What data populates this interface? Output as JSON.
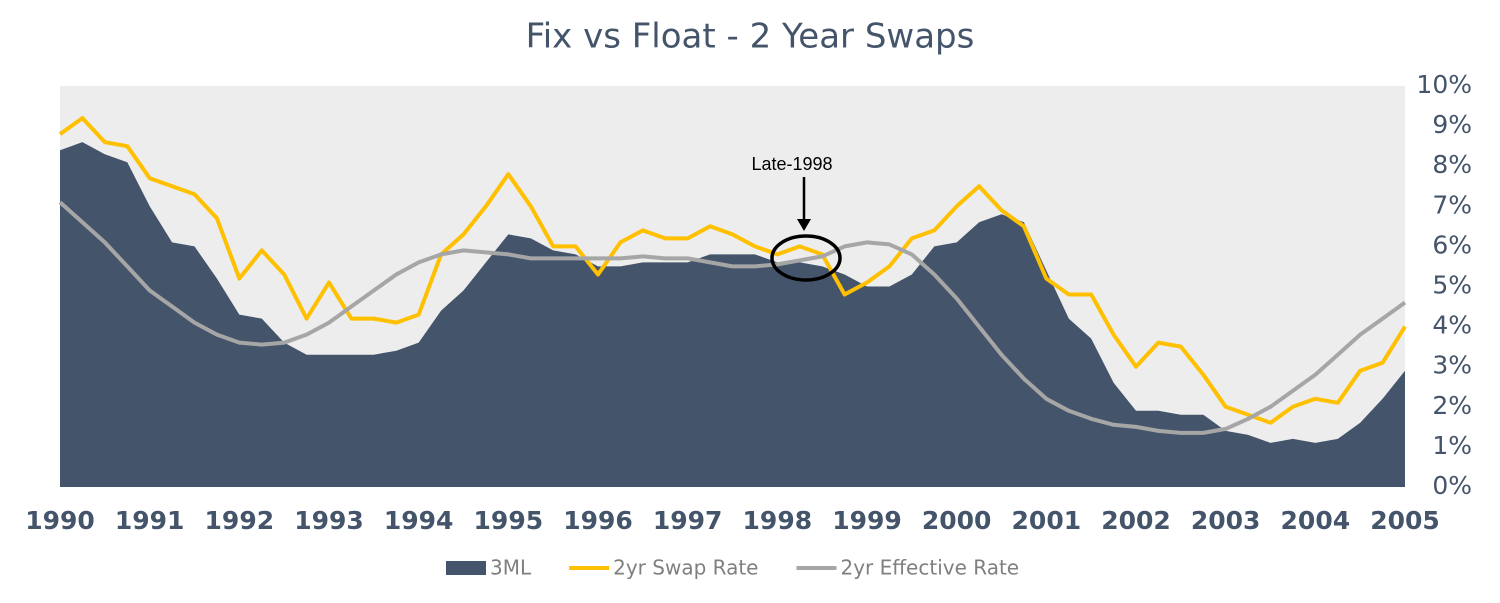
{
  "chart_data": {
    "type": "line",
    "title": "Fix vs Float - 2 Year Swaps",
    "annotations": [
      "Late-1998"
    ],
    "x": [
      1990,
      1990.25,
      1990.5,
      1990.75,
      1991,
      1991.25,
      1991.5,
      1991.75,
      1992,
      1992.25,
      1992.5,
      1992.75,
      1993,
      1993.25,
      1993.5,
      1993.75,
      1994,
      1994.25,
      1994.5,
      1994.75,
      1995,
      1995.25,
      1995.5,
      1995.75,
      1996,
      1996.25,
      1996.5,
      1996.75,
      1997,
      1997.25,
      1997.5,
      1997.75,
      1998,
      1998.25,
      1998.5,
      1998.75,
      1999,
      1999.25,
      1999.5,
      1999.75,
      2000,
      2000.25,
      2000.5,
      2000.75,
      2001,
      2001.25,
      2001.5,
      2001.75,
      2002,
      2002.25,
      2002.5,
      2002.75,
      2003,
      2003.25,
      2003.5,
      2003.75,
      2004,
      2004.25,
      2004.5,
      2004.75,
      2005
    ],
    "series": [
      {
        "name": "3ML",
        "color": "#44546a",
        "area": true,
        "values": [
          8.4,
          8.6,
          8.3,
          8.1,
          7.0,
          6.1,
          6.0,
          5.2,
          4.3,
          4.2,
          3.6,
          3.3,
          3.3,
          3.3,
          3.3,
          3.4,
          3.6,
          4.4,
          4.9,
          5.6,
          6.3,
          6.2,
          5.9,
          5.8,
          5.5,
          5.5,
          5.6,
          5.6,
          5.6,
          5.8,
          5.8,
          5.8,
          5.6,
          5.6,
          5.5,
          5.3,
          5.0,
          5.0,
          5.3,
          6.0,
          6.1,
          6.6,
          6.8,
          6.6,
          5.4,
          4.2,
          3.7,
          2.6,
          1.9,
          1.9,
          1.8,
          1.8,
          1.4,
          1.3,
          1.1,
          1.2,
          1.1,
          1.2,
          1.6,
          2.2,
          2.9
        ]
      },
      {
        "name": "2yr Swap Rate",
        "color": "#ffc000",
        "area": false,
        "values": [
          8.8,
          9.2,
          8.6,
          8.5,
          7.7,
          7.5,
          7.3,
          6.7,
          5.2,
          5.9,
          5.3,
          4.2,
          5.1,
          4.2,
          4.2,
          4.1,
          4.3,
          5.8,
          6.3,
          7.0,
          7.8,
          7.0,
          6.0,
          6.0,
          5.3,
          6.1,
          6.4,
          6.2,
          6.2,
          6.5,
          6.3,
          6.0,
          5.8,
          6.0,
          5.8,
          4.8,
          5.1,
          5.5,
          6.2,
          6.4,
          7.0,
          7.5,
          6.9,
          6.5,
          5.2,
          4.8,
          4.8,
          3.8,
          3.0,
          3.6,
          3.5,
          2.8,
          2.0,
          1.8,
          1.6,
          2.0,
          2.2,
          2.1,
          2.9,
          3.1,
          4.0
        ]
      },
      {
        "name": "2yr Effective Rate",
        "color": "#a6a6a6",
        "area": false,
        "values": [
          7.1,
          6.6,
          6.1,
          5.5,
          4.9,
          4.5,
          4.1,
          3.8,
          3.6,
          3.55,
          3.6,
          3.8,
          4.1,
          4.5,
          4.9,
          5.3,
          5.6,
          5.8,
          5.9,
          5.85,
          5.8,
          5.7,
          5.7,
          5.7,
          5.7,
          5.7,
          5.75,
          5.7,
          5.7,
          5.6,
          5.5,
          5.5,
          5.55,
          5.65,
          5.75,
          6.0,
          6.1,
          6.05,
          5.8,
          5.3,
          4.7,
          4.0,
          3.3,
          2.7,
          2.2,
          1.9,
          1.7,
          1.55,
          1.5,
          1.4,
          1.35,
          1.35,
          1.45,
          1.7,
          2.0,
          2.4,
          2.8,
          3.3,
          3.8,
          4.2,
          4.6
        ]
      }
    ],
    "xlim": [
      1990,
      2005
    ],
    "xticks": [
      1990,
      1991,
      1992,
      1993,
      1994,
      1995,
      1996,
      1997,
      1998,
      1999,
      2000,
      2001,
      2002,
      2003,
      2004,
      2005
    ],
    "ylim": [
      0,
      10
    ],
    "yticks": [
      {
        "value": 0,
        "label": "0%"
      },
      {
        "value": 1,
        "label": "1%"
      },
      {
        "value": 2,
        "label": "2%"
      },
      {
        "value": 3,
        "label": "3%"
      },
      {
        "value": 4,
        "label": "4%"
      },
      {
        "value": 5,
        "label": "5%"
      },
      {
        "value": 6,
        "label": "6%"
      },
      {
        "value": 7,
        "label": "7%"
      },
      {
        "value": 8,
        "label": "8%"
      },
      {
        "value": 9,
        "label": "9%"
      },
      {
        "value": 10,
        "label": "10%"
      }
    ],
    "plot_background": "#ededed",
    "legend": "bottom"
  }
}
